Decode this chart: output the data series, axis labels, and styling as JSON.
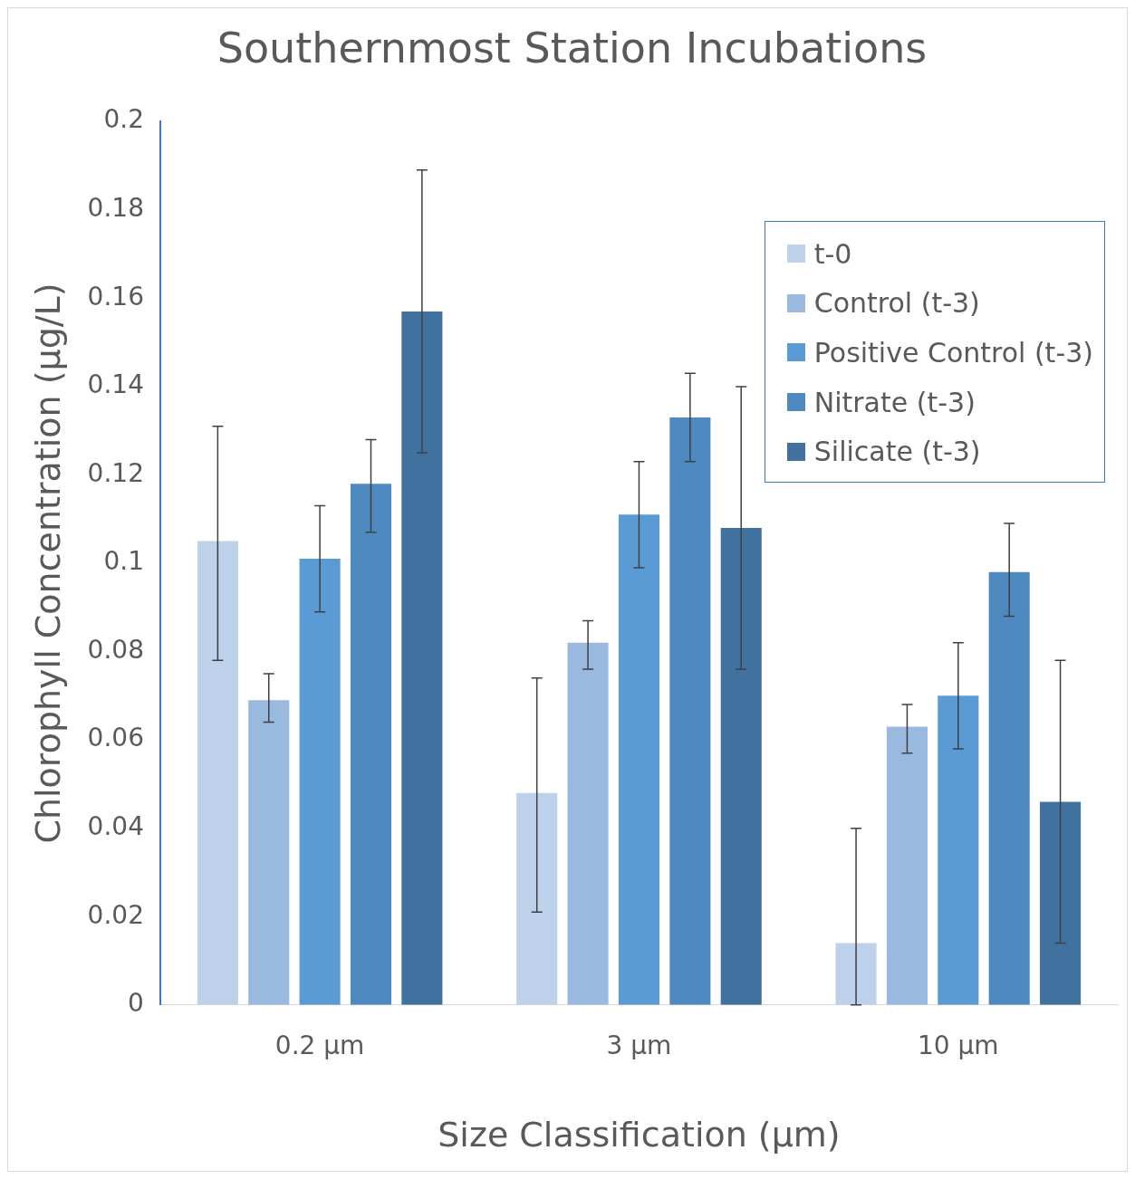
{
  "chart_data": {
    "type": "bar",
    "title": "Southernmost Station Incubations",
    "xlabel": "Size Classification (µm)",
    "ylabel": "Chlorophyll Concentration (µg/L)",
    "categories": [
      "0.2 µm",
      "3 µm",
      "10 µm"
    ],
    "series": [
      {
        "name": "t-0",
        "color": "#bdd1eb",
        "values": [
          0.105,
          0.048,
          0.014
        ],
        "errors": [
          [
            0.078,
            0.131
          ],
          [
            0.021,
            0.074
          ],
          [
            0,
            0.04
          ]
        ]
      },
      {
        "name": "Control (t-3)",
        "color": "#99b9de",
        "values": [
          0.069,
          0.082,
          0.063
        ],
        "errors": [
          [
            0.064,
            0.075
          ],
          [
            0.076,
            0.087
          ],
          [
            0.057,
            0.068
          ]
        ]
      },
      {
        "name": "Positive Control (t-3)",
        "color": "#5b9bd5",
        "values": [
          0.101,
          0.111,
          0.07
        ],
        "errors": [
          [
            0.089,
            0.113
          ],
          [
            0.099,
            0.123
          ],
          [
            0.058,
            0.082
          ]
        ]
      },
      {
        "name": "Nitrate (t-3)",
        "color": "#4e89c0",
        "values": [
          0.118,
          0.133,
          0.098
        ],
        "errors": [
          [
            0.107,
            0.128
          ],
          [
            0.123,
            0.143
          ],
          [
            0.088,
            0.109
          ]
        ]
      },
      {
        "name": "Silicate (t-3)",
        "color": "#41729f",
        "values": [
          0.157,
          0.108,
          0.046
        ],
        "errors": [
          [
            0.125,
            0.189
          ],
          [
            0.076,
            0.14
          ],
          [
            0.014,
            0.078
          ]
        ]
      }
    ],
    "ylim": [
      0,
      0.2
    ],
    "yticks": [
      0,
      0.02,
      0.04,
      0.06,
      0.08,
      0.1,
      0.12,
      0.14,
      0.16,
      0.18,
      0.2
    ],
    "grid": false,
    "legend": "top right"
  }
}
